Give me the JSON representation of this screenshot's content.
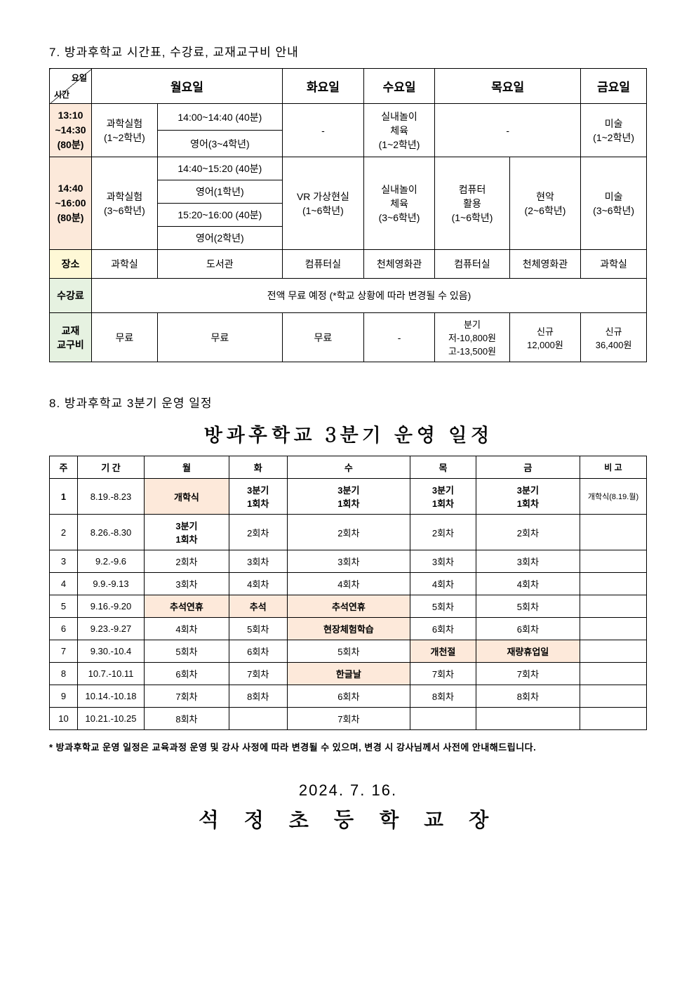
{
  "section7": {
    "title": "7. 방과후학교 시간표, 수강료, 교재교구비 안내",
    "diagTop": "요일",
    "diagBot": "시간",
    "days": [
      "월요일",
      "화요일",
      "수요일",
      "목요일",
      "금요일"
    ],
    "time1": {
      "a": "13:10",
      "b": "~14:30",
      "c": "(80분)"
    },
    "time2": {
      "a": "14:40",
      "b": "~16:00",
      "c": "(80분)"
    },
    "r1": {
      "mon_a": "과학실험\n(1~2학년)",
      "mon_b1": "14:00~14:40 (40분)",
      "mon_b2": "영어(3~4학년)",
      "tue": "-",
      "wed": "실내놀이\n체육\n(1~2학년)",
      "thu": "-",
      "fri": "미술\n(1~2학년)"
    },
    "r2": {
      "mon_a": "과학실험\n(3~6학년)",
      "mon_b1": "14:40~15:20 (40분)",
      "mon_b2": "영어(1학년)",
      "mon_b3": "15:20~16:00 (40분)",
      "mon_b4": "영어(2학년)",
      "tue": "VR 가상현실\n(1~6학년)",
      "wed": "실내놀이\n체육\n(3~6학년)",
      "thu_a": "컴퓨터\n활용\n(1~6학년)",
      "thu_b": "현악\n(2~6학년)",
      "fri": "미술\n(3~6학년)"
    },
    "placeLabel": "장소",
    "places": [
      "과학실",
      "도서관",
      "컴퓨터실",
      "천체영화관",
      "컴퓨터실",
      "천체영화관",
      "과학실"
    ],
    "tuitionLabel": "수강료",
    "tuitionText": "전액 무료 예정  (*학교 상황에 따라 변경될 수 있음)",
    "materialsLabel": "교재\n교구비",
    "materials": [
      "무료",
      "무료",
      "무료",
      "-",
      "분기\n저-10,800원\n고-13,500원",
      "신규\n12,000원",
      "신규\n36,400원"
    ]
  },
  "section8": {
    "title": "8. 방과후학교 3분기 운영 일정",
    "bigTitle": "방과후학교 3분기 운영 일정",
    "headers": [
      "주",
      "기  간",
      "월",
      "화",
      "수",
      "목",
      "금",
      "비  고"
    ],
    "rows": [
      {
        "w": "1",
        "p": "8.19.-8.23",
        "cells": [
          {
            "t": "개학식",
            "h": true
          },
          {
            "t": "3분기\n1회차",
            "b": true
          },
          {
            "t": "3분기\n1회차",
            "b": true
          },
          {
            "t": "3분기\n1회차",
            "b": true
          },
          {
            "t": "3분기\n1회차",
            "b": true
          }
        ],
        "n": "개학식(8.19.월)"
      },
      {
        "w": "2",
        "p": "8.26.-8.30",
        "cells": [
          {
            "t": "3분기\n1회차",
            "b": true
          },
          {
            "t": "2회차"
          },
          {
            "t": "2회차"
          },
          {
            "t": "2회차"
          },
          {
            "t": "2회차"
          }
        ],
        "n": ""
      },
      {
        "w": "3",
        "p": "9.2.-9.6",
        "cells": [
          {
            "t": "2회차"
          },
          {
            "t": "3회차"
          },
          {
            "t": "3회차"
          },
          {
            "t": "3회차"
          },
          {
            "t": "3회차"
          }
        ],
        "n": ""
      },
      {
        "w": "4",
        "p": "9.9.-9.13",
        "cells": [
          {
            "t": "3회차"
          },
          {
            "t": "4회차"
          },
          {
            "t": "4회차"
          },
          {
            "t": "4회차"
          },
          {
            "t": "4회차"
          }
        ],
        "n": ""
      },
      {
        "w": "5",
        "p": "9.16.-9.20",
        "cells": [
          {
            "t": "추석연휴",
            "h": true
          },
          {
            "t": "추석",
            "h": true
          },
          {
            "t": "추석연휴",
            "h": true
          },
          {
            "t": "5회차"
          },
          {
            "t": "5회차"
          }
        ],
        "n": ""
      },
      {
        "w": "6",
        "p": "9.23.-9.27",
        "cells": [
          {
            "t": "4회차"
          },
          {
            "t": "5회차"
          },
          {
            "t": "현장체험학습",
            "h": true
          },
          {
            "t": "6회차"
          },
          {
            "t": "6회차"
          }
        ],
        "n": ""
      },
      {
        "w": "7",
        "p": "9.30.-10.4",
        "cells": [
          {
            "t": "5회차"
          },
          {
            "t": "6회차"
          },
          {
            "t": "5회차"
          },
          {
            "t": "개천절",
            "h": true
          },
          {
            "t": "재량휴업일",
            "h": true
          }
        ],
        "n": ""
      },
      {
        "w": "8",
        "p": "10.7.-10.11",
        "cells": [
          {
            "t": "6회차"
          },
          {
            "t": "7회차"
          },
          {
            "t": "한글날",
            "h": true
          },
          {
            "t": "7회차"
          },
          {
            "t": "7회차"
          }
        ],
        "n": ""
      },
      {
        "w": "9",
        "p": "10.14.-10.18",
        "cells": [
          {
            "t": "7회차"
          },
          {
            "t": "8회차"
          },
          {
            "t": "6회차"
          },
          {
            "t": "8회차"
          },
          {
            "t": "8회차"
          }
        ],
        "n": ""
      },
      {
        "w": "10",
        "p": "10.21.-10.25",
        "cells": [
          {
            "t": "8회차"
          },
          {
            "t": ""
          },
          {
            "t": "7회차"
          },
          {
            "t": ""
          },
          {
            "t": ""
          }
        ],
        "n": ""
      }
    ],
    "footnote": "* 방과후학교 운영 일정은 교육과정 운영 및 강사 사정에 따라 변경될 수 있으며, 변경 시 강사님께서 사전에 안내해드립니다."
  },
  "footer": {
    "date": "2024. 7. 16.",
    "name": "석 정 초 등 학 교 장"
  },
  "colors": {
    "pink": "#fce9da",
    "yellow": "#fef8d6",
    "green": "#e6f2e1",
    "pinkCell": "#fde9da",
    "border": "#000000",
    "text": "#000000",
    "bg": "#ffffff"
  }
}
